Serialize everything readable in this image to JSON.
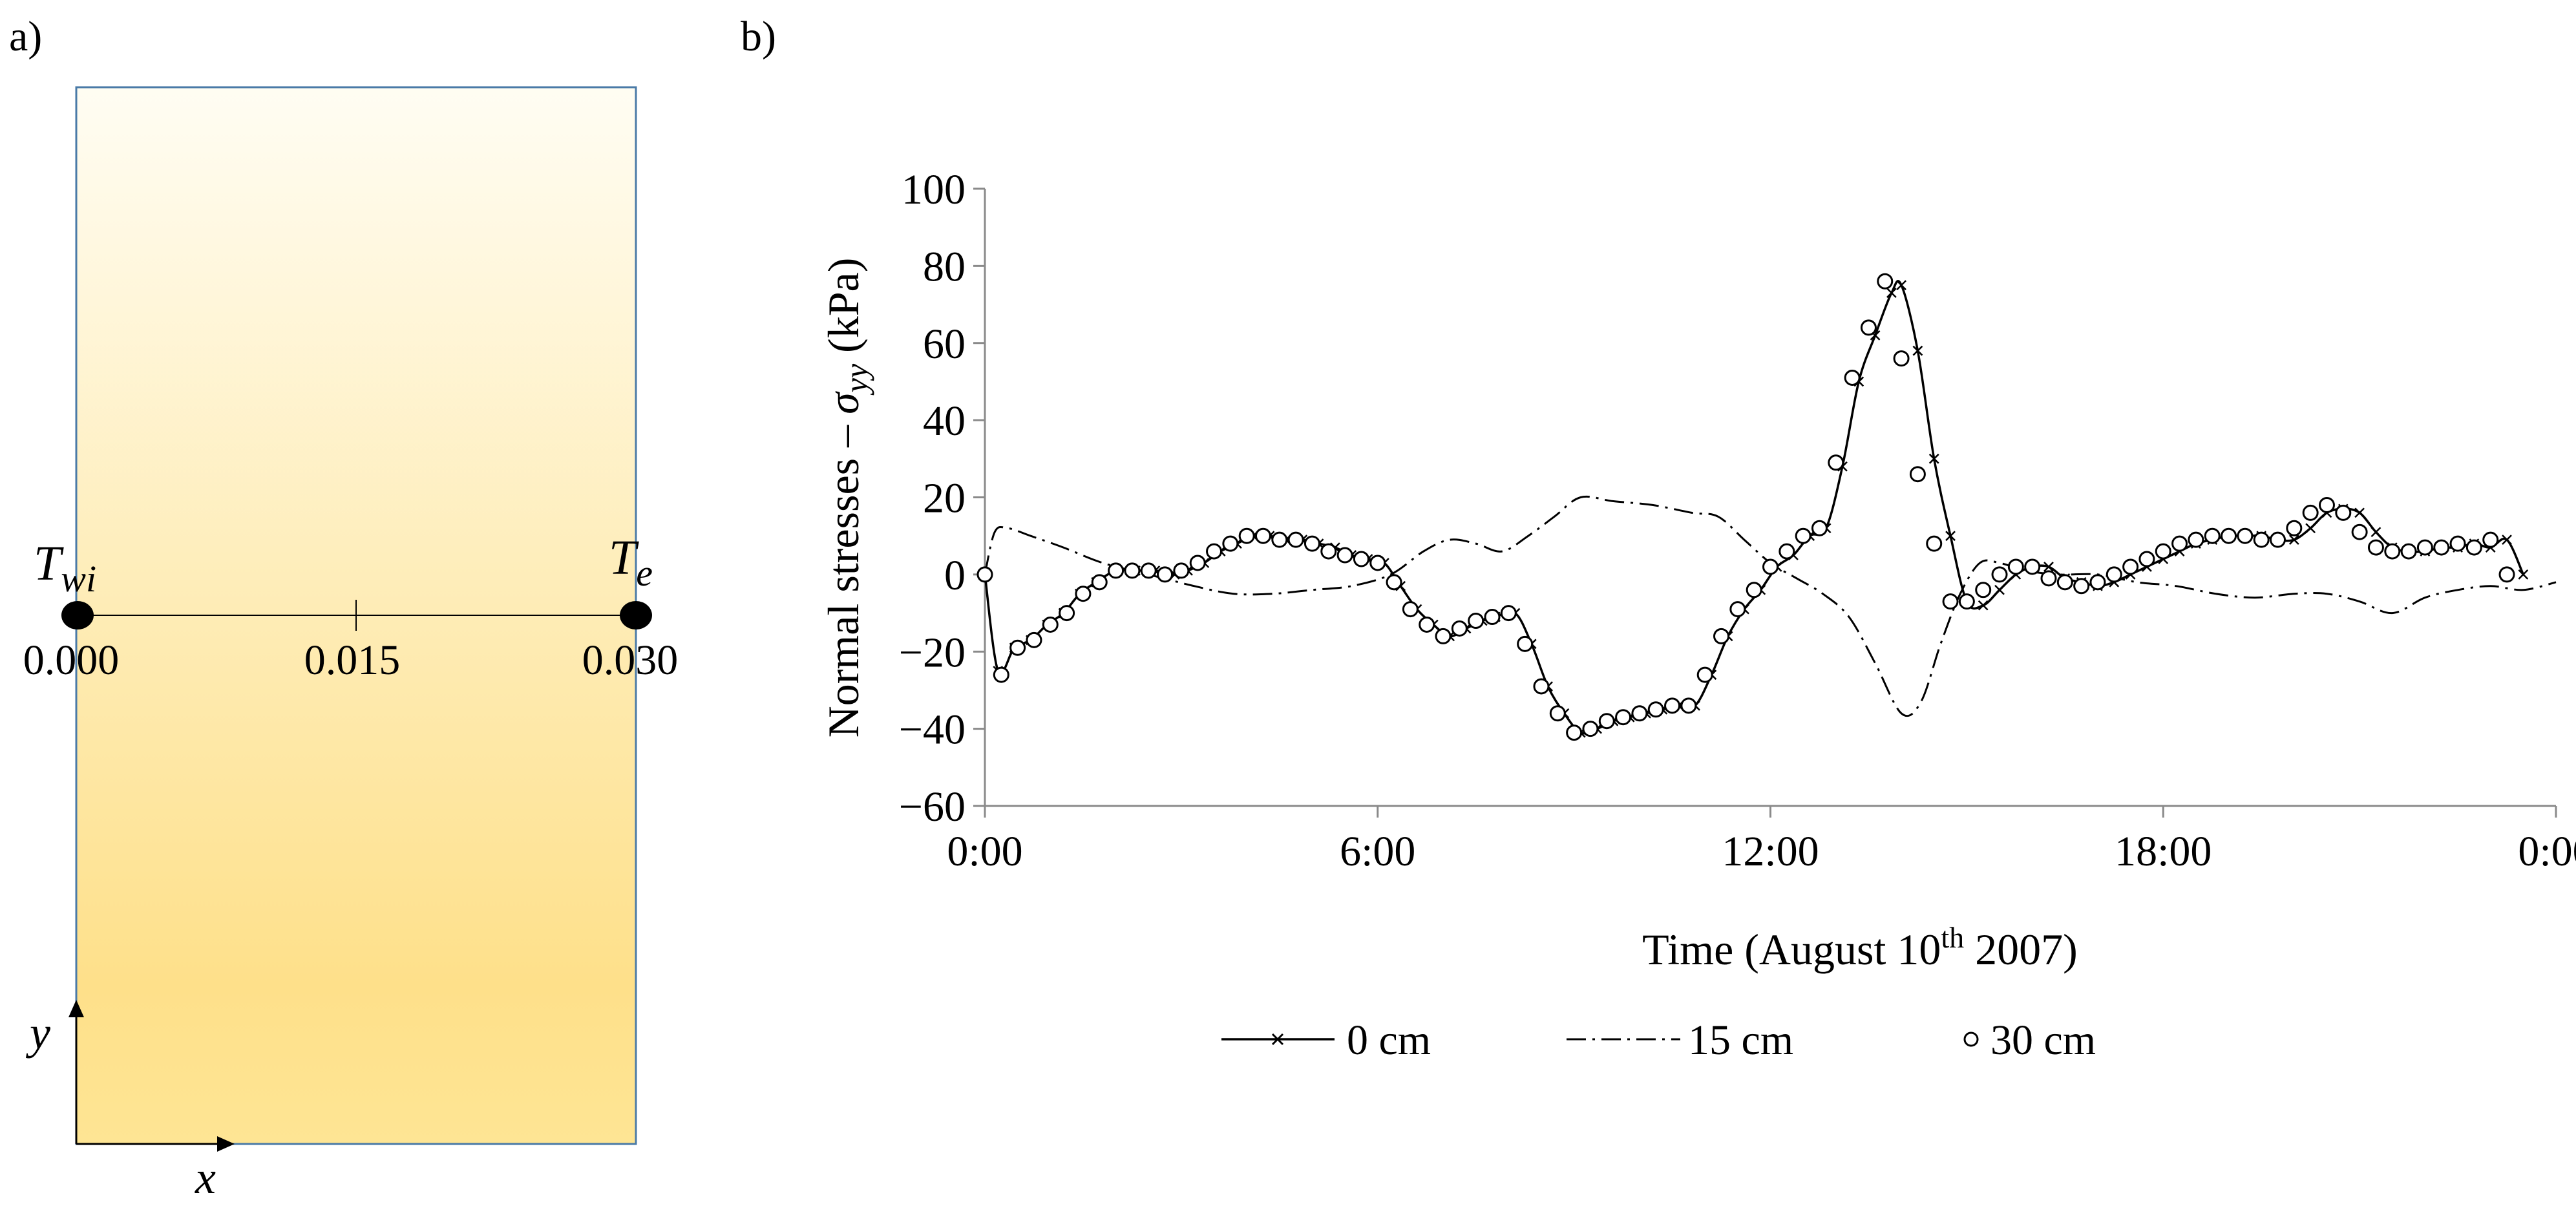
{
  "panel_a": {
    "label": "a)",
    "left_node": {
      "symbol": "T",
      "sub": "wi"
    },
    "right_node": {
      "symbol": "T",
      "sub": "e"
    },
    "x_ticks": [
      "0.000",
      "0.015",
      "0.030"
    ],
    "axis_y": "y",
    "axis_x": "x",
    "gradient_top": "#fffdf3",
    "gradient_bottom": "#fee08a",
    "border_color": "#4a7aa7"
  },
  "panel_b": {
    "label": "b)"
  },
  "chart_data": {
    "type": "line",
    "ylabel_main": "Normal stresses – ",
    "ylabel_sym": "σ",
    "ylabel_sub": "yy",
    "ylabel_unit": " (kPa)",
    "xlabel_main": "Time (August 10",
    "xlabel_sup": "th",
    "xlabel_end": " 2007)",
    "ylim": [
      -60,
      100
    ],
    "yticks": [
      100,
      80,
      60,
      40,
      20,
      0,
      -20,
      -40,
      -60
    ],
    "ytick_labels": [
      "100",
      "80",
      "60",
      "40",
      "20",
      "0",
      "−20",
      "−40",
      "−60"
    ],
    "xlim": [
      0,
      24
    ],
    "xticks": [
      0,
      6,
      12,
      18,
      24
    ],
    "xtick_labels": [
      "0:00",
      "6:00",
      "12:00",
      "18:00",
      "0:00"
    ],
    "series": [
      {
        "name": "0 cm",
        "style": "solid-x",
        "x": [
          0,
          0.2,
          0.45,
          0.7,
          0.95,
          1.2,
          1.45,
          1.7,
          2.0,
          2.3,
          2.6,
          2.9,
          3.1,
          3.35,
          3.6,
          3.85,
          4.1,
          4.35,
          4.6,
          4.85,
          5.1,
          5.35,
          5.6,
          5.85,
          6.1,
          6.35,
          6.6,
          6.85,
          7.1,
          7.35,
          7.6,
          7.8,
          8.1,
          8.35,
          8.6,
          8.85,
          9.1,
          9.35,
          9.6,
          9.85,
          10.1,
          10.35,
          10.6,
          10.85,
          11.1,
          11.35,
          11.6,
          11.85,
          12.1,
          12.35,
          12.6,
          12.85,
          13.1,
          13.35,
          13.6,
          13.85,
          14.0,
          14.25,
          14.5,
          14.75,
          15.0,
          15.25,
          15.5,
          15.75,
          16.0,
          16.25,
          16.5,
          16.75,
          17.0,
          17.25,
          17.5,
          17.75,
          18.0,
          18.25,
          18.5,
          18.75,
          19.0,
          19.25,
          19.5,
          19.75,
          20.0,
          20.25,
          20.5,
          20.75,
          21.0,
          21.25,
          21.5,
          21.75,
          22.0,
          22.25,
          22.5,
          22.75,
          23.0,
          23.25,
          23.5,
          23.75,
          24.0
        ],
        "y": [
          0,
          -25,
          -19,
          -17,
          -13,
          -10,
          -5,
          -2,
          1,
          1,
          1,
          0,
          1,
          3,
          6,
          8,
          10,
          10,
          9,
          9,
          8,
          7,
          5,
          4,
          3,
          -3,
          -9,
          -13,
          -16,
          -14,
          -12,
          -11,
          -10,
          -18,
          -29,
          -36,
          -41,
          -40,
          -38,
          -37,
          -36,
          -35,
          -34,
          -34,
          -26,
          -16,
          -9,
          -4,
          2,
          5,
          10,
          12,
          28,
          50,
          62,
          73,
          75,
          58,
          30,
          10,
          -7,
          -8,
          -4,
          0,
          2,
          2,
          -1,
          -2,
          -3,
          -2,
          0,
          2,
          4,
          6,
          8,
          9,
          10,
          10,
          10,
          9,
          9,
          12,
          16,
          17,
          16,
          11,
          7,
          6,
          6,
          7,
          7,
          8,
          7,
          9,
          0,
          null,
          null
        ]
      },
      {
        "name": "15 cm",
        "style": "dash-dot",
        "x": [
          0,
          0.15,
          0.35,
          0.7,
          1.2,
          1.8,
          2.5,
          3.2,
          3.8,
          4.4,
          5.0,
          5.6,
          6.2,
          6.7,
          7.1,
          7.5,
          7.9,
          8.3,
          8.7,
          9.1,
          9.6,
          10.2,
          10.8,
          11.2,
          11.6,
          12.0,
          12.4,
          12.8,
          13.2,
          13.6,
          14.0,
          14.3,
          14.6,
          14.9,
          15.2,
          15.5,
          15.9,
          16.4,
          17.0,
          17.6,
          18.2,
          18.8,
          19.4,
          20.0,
          20.5,
          21.0,
          21.5,
          22.0,
          22.5,
          23.0,
          23.5,
          24.0
        ],
        "y": [
          0,
          11,
          12,
          10,
          7,
          3,
          0,
          -3,
          -5,
          -5,
          -4,
          -3,
          0,
          6,
          9,
          8,
          6,
          10,
          15,
          20,
          19,
          18,
          16,
          15,
          9,
          3,
          -1,
          -5,
          -11,
          -23,
          -36,
          -33,
          -18,
          -5,
          3,
          3,
          1,
          0,
          0,
          -2,
          -3,
          -5,
          -6,
          -5,
          -5,
          -7,
          -10,
          -6,
          -4,
          -3,
          -4,
          -2
        ]
      },
      {
        "name": "30 cm",
        "style": "circles",
        "x": [
          0,
          0.25,
          0.5,
          0.75,
          1.0,
          1.25,
          1.5,
          1.75,
          2.0,
          2.25,
          2.5,
          2.75,
          3.0,
          3.25,
          3.5,
          3.75,
          4.0,
          4.25,
          4.5,
          4.75,
          5.0,
          5.25,
          5.5,
          5.75,
          6.0,
          6.25,
          6.5,
          6.75,
          7.0,
          7.25,
          7.5,
          7.75,
          8.0,
          8.25,
          8.5,
          8.75,
          9.0,
          9.25,
          9.5,
          9.75,
          10.0,
          10.25,
          10.5,
          10.75,
          11.0,
          11.25,
          11.5,
          11.75,
          12.0,
          12.25,
          12.5,
          12.75,
          13.0,
          13.25,
          13.5,
          13.75,
          14.0,
          14.25,
          14.5,
          14.75,
          15.0,
          15.25,
          15.5,
          15.75,
          16.0,
          16.25,
          16.5,
          16.75,
          17.0,
          17.25,
          17.5,
          17.75,
          18.0,
          18.25,
          18.5,
          18.75,
          19.0,
          19.25,
          19.5,
          19.75,
          20.0,
          20.25,
          20.5,
          20.75,
          21.0,
          21.25,
          21.5,
          21.75,
          22.0,
          22.25,
          22.5,
          22.75,
          23.0,
          23.25,
          23.5,
          23.75,
          24.0
        ],
        "y": [
          0,
          -26,
          -19,
          -17,
          -13,
          -10,
          -5,
          -2,
          1,
          1,
          1,
          0,
          1,
          3,
          6,
          8,
          10,
          10,
          9,
          9,
          8,
          6,
          5,
          4,
          3,
          -2,
          -9,
          -13,
          -16,
          -14,
          -12,
          -11,
          -10,
          -18,
          -29,
          -36,
          -41,
          -40,
          -38,
          -37,
          -36,
          -35,
          -34,
          -34,
          -26,
          -16,
          -9,
          -4,
          2,
          6,
          10,
          12,
          29,
          51,
          64,
          76,
          56,
          26,
          8,
          -7,
          -7,
          -4,
          0,
          2,
          2,
          -1,
          -2,
          -3,
          -2,
          0,
          2,
          4,
          6,
          8,
          9,
          10,
          10,
          10,
          9,
          9,
          12,
          16,
          18,
          16,
          11,
          7,
          6,
          6,
          7,
          7,
          8,
          7,
          9,
          0,
          null,
          null,
          null
        ]
      }
    ],
    "legend": [
      {
        "label": "0 cm"
      },
      {
        "label": "15 cm"
      },
      {
        "label": "30 cm"
      }
    ]
  }
}
